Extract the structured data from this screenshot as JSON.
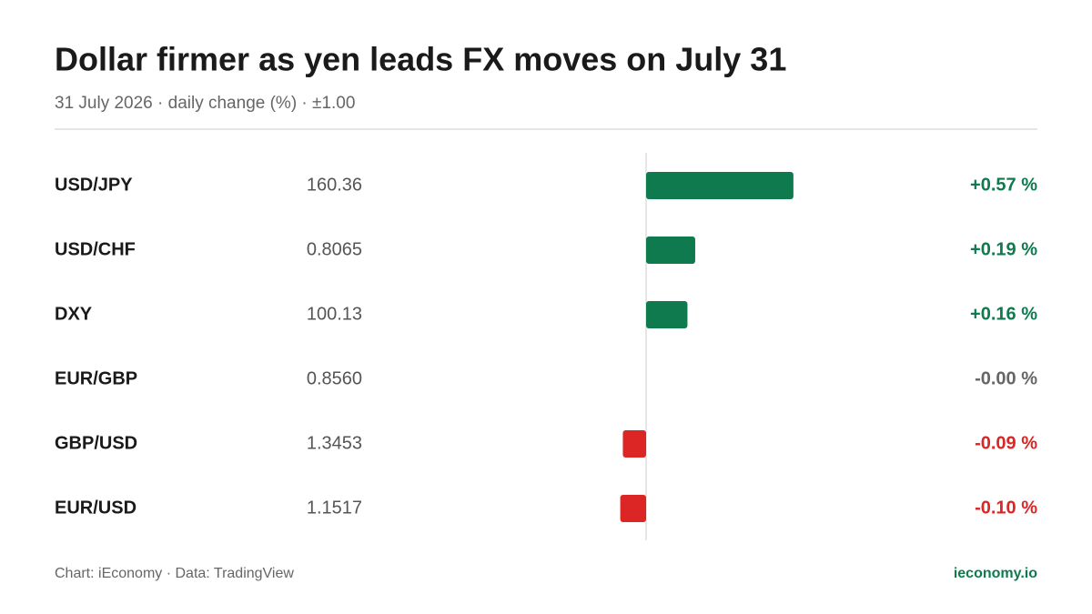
{
  "chart_data": {
    "type": "diverging-bar",
    "title": "Dollar firmer as yen leads FX moves on July 31",
    "subtitle": "31 July 2026 · daily change (%) · ±1.00",
    "categories": [
      "USD/JPY",
      "USD/CHF",
      "DXY",
      "EUR/GBP",
      "GBP/USD",
      "EUR/USD"
    ],
    "prices": [
      "160.36",
      "0.8065",
      "100.13",
      "0.8560",
      "1.3453",
      "1.1517"
    ],
    "values": [
      0.57,
      0.19,
      0.16,
      0,
      -0.09,
      -0.1
    ],
    "value_labels": [
      "+0.57 %",
      "+0.19 %",
      "+0.16 %",
      "-0.00 %",
      "-0.09 %",
      "-0.10 %"
    ],
    "xlim": [
      -1,
      1
    ],
    "up_color": "#0f7a4e",
    "down_color": "#dc2626",
    "flat_color": "#666666",
    "source": "Chart: iEconomy · Data: TradingView",
    "brand": "ieconomy.io"
  }
}
